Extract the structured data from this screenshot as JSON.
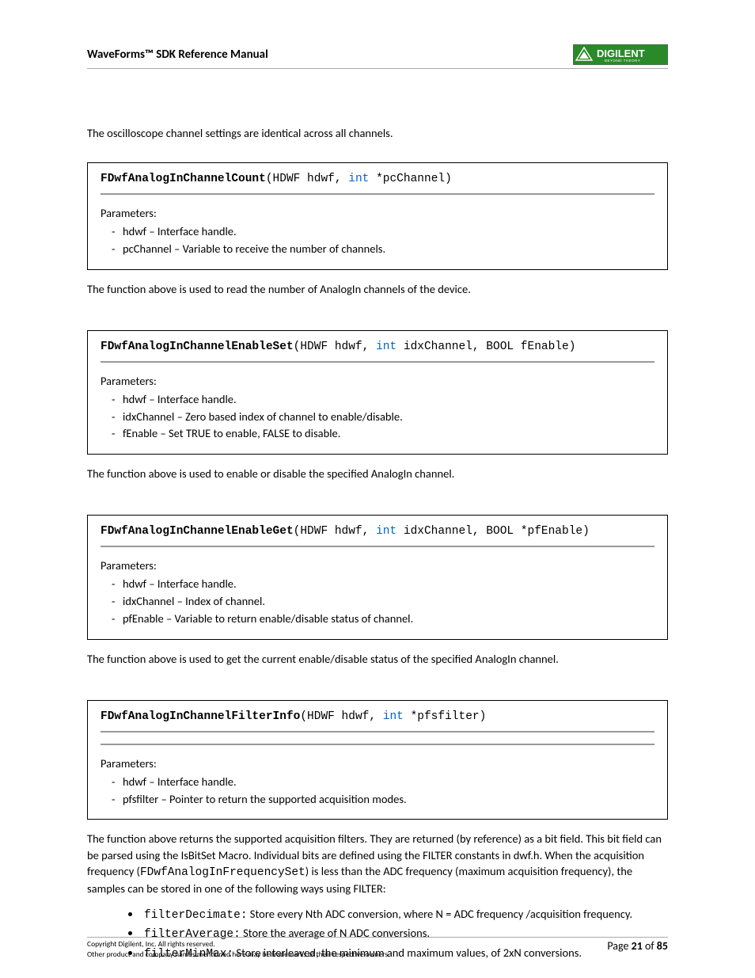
{
  "header": {
    "title": "WaveForms™ SDK Reference Manual",
    "logo_text": "DIGILENT",
    "logo_tagline": "BEYOND THEORY",
    "logo_bg": "#2a8a2a",
    "logo_border": "#555",
    "logo_text_color": "#ffffff"
  },
  "intro": "The oscilloscope channel settings are identical across all channels.",
  "functions": [
    {
      "name": "FDwfAnalogInChannelCount",
      "sig_pre": "(HDWF hdwf, ",
      "sig_kw": "int",
      "sig_post": " *pcChannel)",
      "params_label": "Parameters:",
      "params": [
        "hdwf – Interface handle.",
        "pcChannel – Variable to receive the number of channels."
      ],
      "desc": "The function above is used to read the number of AnalogIn channels of the device.",
      "extra_hr": false
    },
    {
      "name": "FDwfAnalogInChannelEnableSet",
      "sig_pre": "(HDWF hdwf, ",
      "sig_kw": "int",
      "sig_post": " idxChannel, BOOL fEnable)",
      "params_label": "Parameters:",
      "params": [
        "hdwf – Interface handle.",
        "idxChannel – Zero based index of channel to enable/disable.",
        "fEnable – Set TRUE to enable, FALSE to disable."
      ],
      "desc": "The function above is used to enable or disable the specified AnalogIn channel.",
      "extra_hr": false
    },
    {
      "name": "FDwfAnalogInChannelEnableGet",
      "sig_pre": "(HDWF hdwf, ",
      "sig_kw": "int",
      "sig_post": " idxChannel, BOOL *pfEnable)",
      "params_label": "Parameters:",
      "params": [
        "hdwf – Interface handle.",
        "idxChannel – Index of channel.",
        "pfEnable – Variable to return enable/disable status of channel."
      ],
      "desc": "The function above is used to get the current enable/disable status of the specified AnalogIn channel.",
      "extra_hr": false
    },
    {
      "name": "FDwfAnalogInChannelFilterInfo",
      "sig_pre": "(HDWF hdwf, ",
      "sig_kw": "int",
      "sig_post": " *pfsfilter)",
      "params_label": "Parameters:",
      "params": [
        "hdwf – Interface handle.",
        "pfsfilter – Pointer to return the supported acquisition modes."
      ],
      "desc": "",
      "extra_hr": true
    }
  ],
  "long_desc_pre": "The function above returns the supported acquisition filters. They are returned (by reference) as a bit field. This bit field can be parsed using the IsBitSet Macro. Individual bits are defined using the FILTER constants in dwf.h. When the acquisition frequency (",
  "long_desc_code": "FDwfAnalogInFrequencySet",
  "long_desc_post": ") is less than the ADC frequency (maximum acquisition frequency), the samples can be stored in one of the following ways using FILTER:",
  "bullets": [
    {
      "code": "filterDecimate:",
      "text": " Store every Nth ADC conversion, where N = ADC frequency /acquisition frequency."
    },
    {
      "code": "filterAverage:",
      "text": " Store the average of N ADC conversions."
    },
    {
      "code": "filterMinMax:",
      "text": " Store interleaved, the minimum and maximum values, of 2xN conversions."
    }
  ],
  "footer": {
    "copyright": "Copyright Digilent, Inc. All rights reserved.",
    "trademark": "Other product and company names mentioned here may be trademarks of their respective owners.",
    "page_pre": "Page ",
    "page_num": "21",
    "page_mid": " of ",
    "page_total": "85"
  }
}
